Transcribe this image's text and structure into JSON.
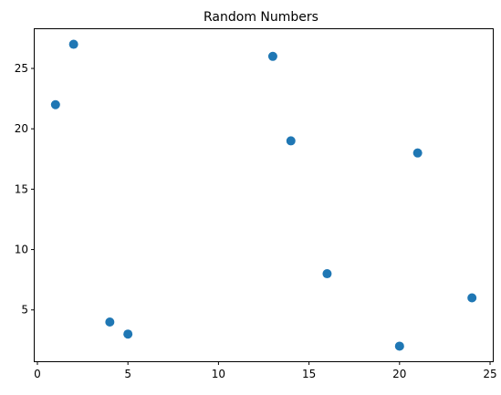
{
  "chart_data": {
    "type": "scatter",
    "title": "Random Numbers",
    "xlabel": "",
    "ylabel": "",
    "x": [
      1,
      2,
      4,
      5,
      13,
      14,
      16,
      20,
      21,
      24
    ],
    "y": [
      22,
      27,
      4,
      3,
      26,
      19,
      8,
      2,
      18,
      6
    ],
    "xlim": [
      -0.15,
      25.15
    ],
    "ylim": [
      0.75,
      28.25
    ],
    "xticks": [
      0,
      5,
      10,
      15,
      20,
      25
    ],
    "yticks": [
      5,
      10,
      15,
      20,
      25
    ],
    "grid": false,
    "legend": "none",
    "colors": {
      "marker": "#1f77b4",
      "axes": "#000000",
      "background": "#ffffff"
    }
  }
}
